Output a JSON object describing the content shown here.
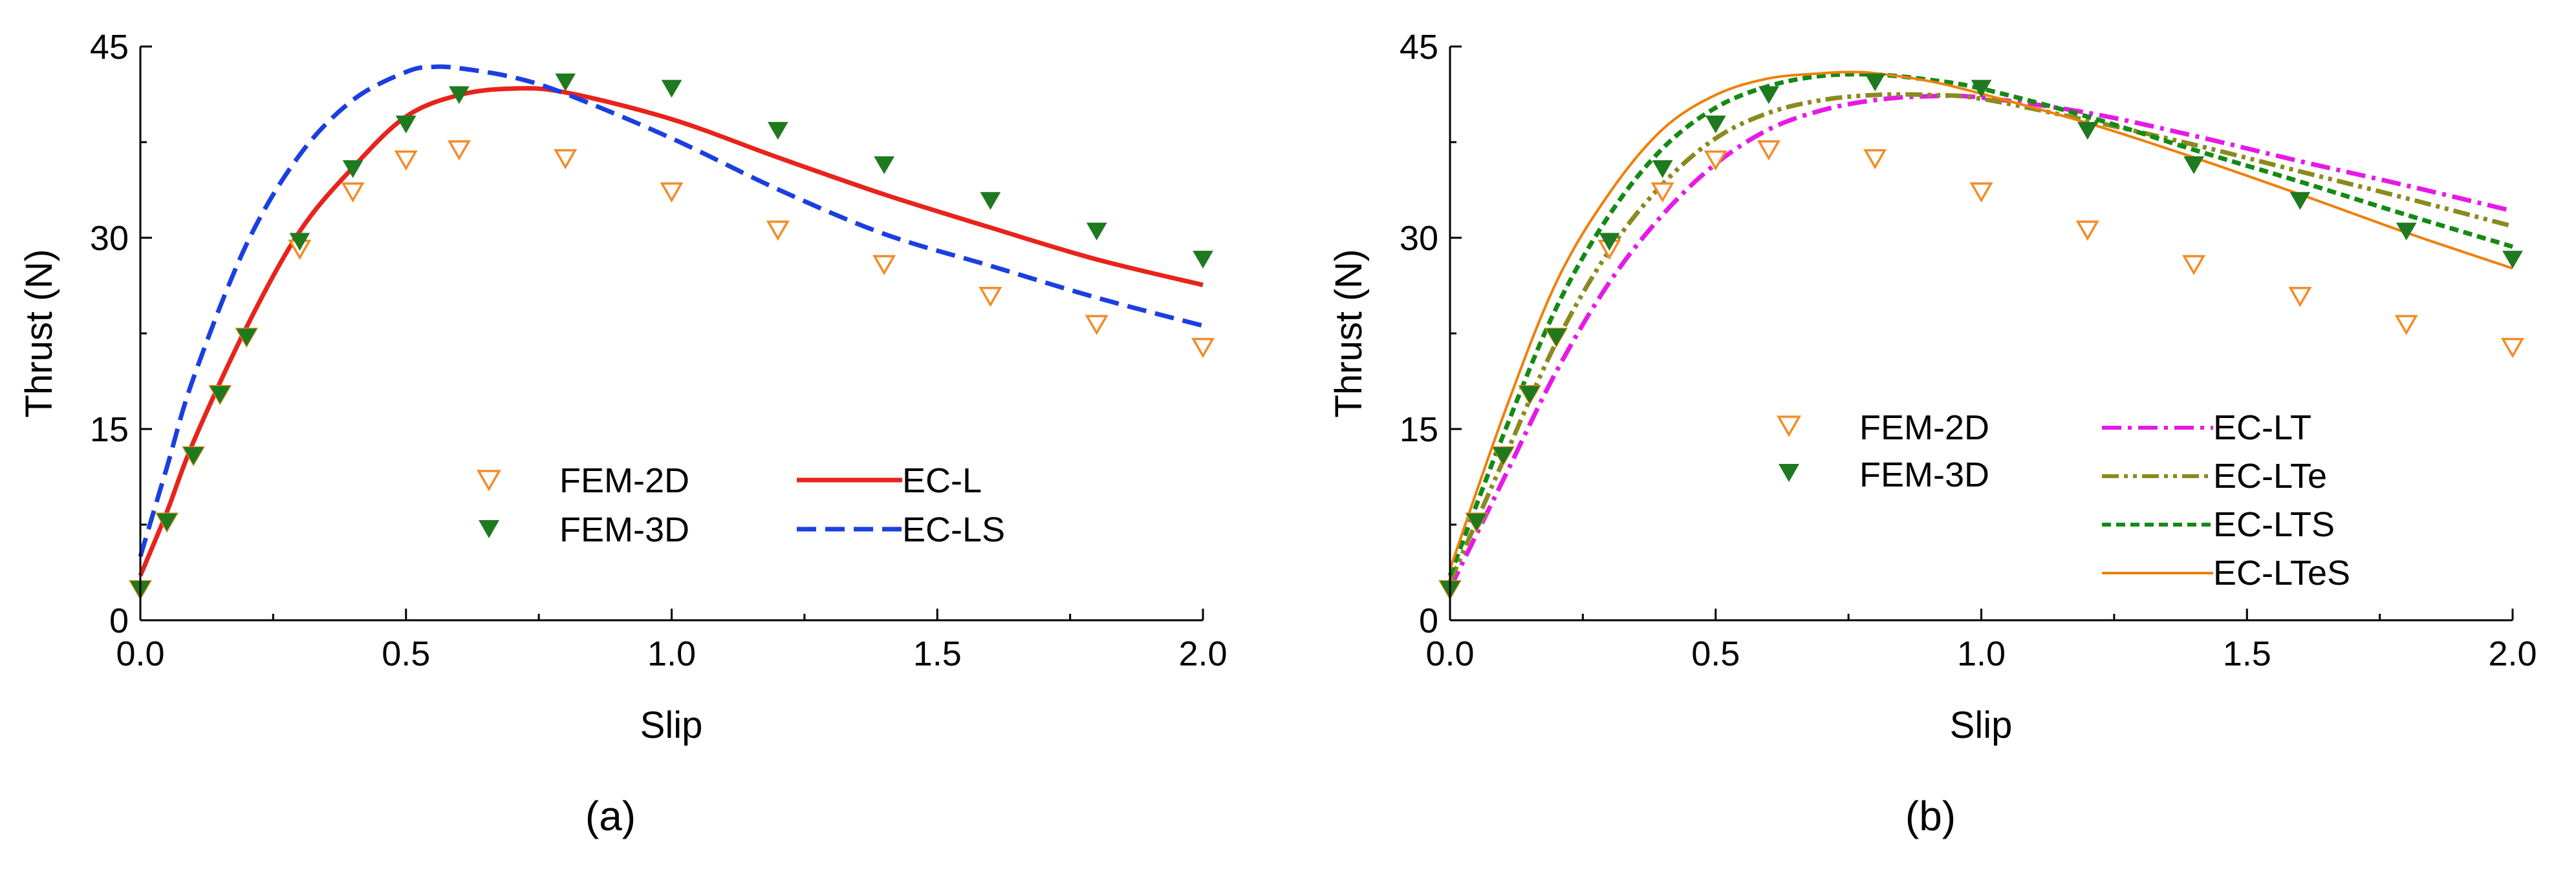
{
  "chart_data": [
    {
      "panel": "(a)",
      "type": "line",
      "title": "",
      "xlabel": "Slip",
      "ylabel": "Thrust (N)",
      "xlim": [
        0.0,
        2.0
      ],
      "ylim": [
        0,
        45
      ],
      "xticks": [
        0.0,
        0.5,
        1.0,
        1.5,
        2.0
      ],
      "xticklabels": [
        "0.0",
        "0.5",
        "1.0",
        "1.5",
        "2.0"
      ],
      "yticks": [
        0,
        15,
        30,
        45
      ],
      "yticklabels": [
        "0",
        "15",
        "30",
        "45"
      ],
      "grid": false,
      "legend_position": "lower-center",
      "series": [
        {
          "name": "FEM-2D",
          "kind": "scatter",
          "marker": "open-down-triangle",
          "color": "#F28C28",
          "x": [
            0.0,
            0.05,
            0.1,
            0.15,
            0.2,
            0.3,
            0.4,
            0.5,
            0.6,
            0.8,
            1.0,
            1.2,
            1.4,
            1.6,
            1.8,
            2.0
          ],
          "y": [
            2.5,
            7.8,
            13.0,
            17.8,
            22.3,
            29.2,
            33.7,
            36.2,
            37.0,
            36.3,
            33.7,
            30.7,
            28.0,
            25.5,
            23.3,
            21.5
          ]
        },
        {
          "name": "FEM-3D",
          "kind": "scatter",
          "marker": "filled-down-triangle",
          "color": "#1F7A1F",
          "x": [
            0.0,
            0.05,
            0.1,
            0.15,
            0.2,
            0.3,
            0.4,
            0.5,
            0.6,
            0.8,
            1.0,
            1.2,
            1.4,
            1.6,
            1.8,
            2.0
          ],
          "y": [
            2.5,
            7.8,
            13.0,
            17.8,
            22.3,
            29.8,
            35.5,
            39.0,
            41.3,
            42.3,
            41.8,
            38.5,
            35.8,
            33.0,
            30.6,
            28.4
          ]
        },
        {
          "name": "EC-L",
          "kind": "line",
          "dash": "solid",
          "color": "#E8231C",
          "x": [
            0.0,
            0.05,
            0.1,
            0.2,
            0.3,
            0.4,
            0.5,
            0.6,
            0.7,
            0.8,
            1.0,
            1.2,
            1.4,
            1.6,
            1.8,
            2.0
          ],
          "y": [
            3.5,
            8.5,
            14.0,
            23.0,
            30.5,
            35.5,
            39.5,
            41.2,
            41.7,
            41.4,
            39.3,
            36.3,
            33.4,
            30.8,
            28.3,
            26.3
          ]
        },
        {
          "name": "EC-LS",
          "kind": "line",
          "dash": "dashed",
          "color": "#1A3FE0",
          "x": [
            0.0,
            0.05,
            0.1,
            0.2,
            0.3,
            0.4,
            0.5,
            0.55,
            0.6,
            0.7,
            0.8,
            1.0,
            1.2,
            1.4,
            1.6,
            1.8,
            2.0
          ],
          "y": [
            5.0,
            12.0,
            19.0,
            29.5,
            36.5,
            40.8,
            43.0,
            43.4,
            43.3,
            42.6,
            41.3,
            37.8,
            33.8,
            30.3,
            27.8,
            25.3,
            23.1
          ]
        }
      ]
    },
    {
      "panel": "(b)",
      "type": "line",
      "title": "",
      "xlabel": "Slip",
      "ylabel": "Thrust (N)",
      "xlim": [
        0.0,
        2.0
      ],
      "ylim": [
        0,
        45
      ],
      "xticks": [
        0.0,
        0.5,
        1.0,
        1.5,
        2.0
      ],
      "xticklabels": [
        "0.0",
        "0.5",
        "1.0",
        "1.5",
        "2.0"
      ],
      "yticks": [
        0,
        15,
        30,
        45
      ],
      "yticklabels": [
        "0",
        "15",
        "30",
        "45"
      ],
      "grid": false,
      "legend_position": "lower-center",
      "series": [
        {
          "name": "FEM-2D",
          "kind": "scatter",
          "marker": "open-down-triangle",
          "color": "#F28C28",
          "x": [
            0.0,
            0.05,
            0.1,
            0.15,
            0.2,
            0.3,
            0.4,
            0.5,
            0.6,
            0.8,
            1.0,
            1.2,
            1.4,
            1.6,
            1.8,
            2.0
          ],
          "y": [
            2.5,
            7.8,
            13.0,
            17.8,
            22.3,
            29.2,
            33.7,
            36.2,
            37.0,
            36.3,
            33.7,
            30.7,
            28.0,
            25.5,
            23.3,
            21.5
          ]
        },
        {
          "name": "FEM-3D",
          "kind": "scatter",
          "marker": "filled-down-triangle",
          "color": "#1F7A1F",
          "x": [
            0.0,
            0.05,
            0.1,
            0.15,
            0.2,
            0.3,
            0.4,
            0.5,
            0.6,
            0.8,
            1.0,
            1.2,
            1.4,
            1.6,
            1.8,
            2.0
          ],
          "y": [
            2.5,
            7.8,
            13.0,
            17.8,
            22.3,
            29.8,
            35.5,
            39.0,
            41.3,
            42.3,
            41.8,
            38.5,
            35.8,
            33.0,
            30.6,
            28.4
          ]
        },
        {
          "name": "EC-LT",
          "kind": "line",
          "dash": "dash-dot",
          "color": "#E619E6",
          "x": [
            0.0,
            0.1,
            0.2,
            0.3,
            0.4,
            0.5,
            0.6,
            0.7,
            0.8,
            0.9,
            1.0,
            1.2,
            1.4,
            1.6,
            1.8,
            2.0
          ],
          "y": [
            2.5,
            11.0,
            19.5,
            26.5,
            31.8,
            35.8,
            38.5,
            40.0,
            40.8,
            41.1,
            41.0,
            39.8,
            38.0,
            36.0,
            34.1,
            32.1
          ]
        },
        {
          "name": "EC-LTe",
          "kind": "line",
          "dash": "dash-dot-dot",
          "color": "#8A8A1F",
          "x": [
            0.0,
            0.1,
            0.2,
            0.3,
            0.4,
            0.5,
            0.6,
            0.7,
            0.8,
            0.9,
            1.0,
            1.2,
            1.4,
            1.6,
            1.8,
            2.0
          ],
          "y": [
            3.0,
            12.5,
            21.8,
            29.0,
            34.2,
            37.8,
            39.8,
            40.8,
            41.2,
            41.2,
            40.9,
            39.2,
            37.3,
            35.2,
            33.1,
            30.9
          ]
        },
        {
          "name": "EC-LTS",
          "kind": "line",
          "dash": "short-dash",
          "color": "#138A13",
          "x": [
            0.0,
            0.1,
            0.2,
            0.3,
            0.4,
            0.5,
            0.6,
            0.7,
            0.8,
            0.9,
            1.0,
            1.2,
            1.4,
            1.6,
            1.8,
            2.0
          ],
          "y": [
            3.5,
            14.5,
            24.5,
            31.8,
            37.0,
            40.2,
            41.9,
            42.7,
            42.8,
            42.4,
            41.7,
            39.5,
            36.9,
            34.4,
            31.8,
            29.3
          ]
        },
        {
          "name": "EC-LTeS",
          "kind": "line",
          "dash": "solid",
          "color": "#F07F0A",
          "x": [
            0.0,
            0.1,
            0.2,
            0.3,
            0.4,
            0.5,
            0.6,
            0.7,
            0.75,
            0.8,
            0.9,
            1.0,
            1.2,
            1.4,
            1.6,
            1.8,
            2.0
          ],
          "y": [
            4.0,
            16.0,
            26.5,
            33.5,
            38.5,
            41.2,
            42.5,
            42.9,
            43.0,
            42.9,
            42.3,
            41.3,
            39.0,
            36.3,
            33.4,
            30.4,
            27.6
          ]
        }
      ]
    }
  ],
  "captions": [
    "(a)",
    "(b)"
  ]
}
